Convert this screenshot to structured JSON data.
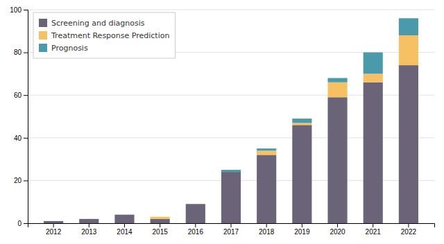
{
  "chart_data": {
    "type": "bar",
    "stacked": true,
    "categories": [
      "2012",
      "2013",
      "2014",
      "2015",
      "2016",
      "2017",
      "2018",
      "2019",
      "2020",
      "2021",
      "2022"
    ],
    "series": [
      {
        "name": "Screening and diagnosis",
        "color": "#6b6478",
        "values": [
          1,
          2,
          4,
          2,
          9,
          24,
          32,
          46,
          59,
          66,
          74
        ]
      },
      {
        "name": "Treatment Response Prediction",
        "color": "#f5c163",
        "values": [
          0,
          0,
          0,
          1,
          0,
          0,
          2,
          1,
          7,
          4,
          14
        ]
      },
      {
        "name": "Prognosis",
        "color": "#4a9aab",
        "values": [
          0,
          0,
          0,
          0,
          0,
          1,
          1,
          2,
          2,
          10,
          8
        ]
      }
    ],
    "ylim": [
      0,
      100
    ],
    "yticks": [
      0,
      20,
      40,
      60,
      80,
      100
    ],
    "grid": true,
    "legend": "upper left"
  }
}
